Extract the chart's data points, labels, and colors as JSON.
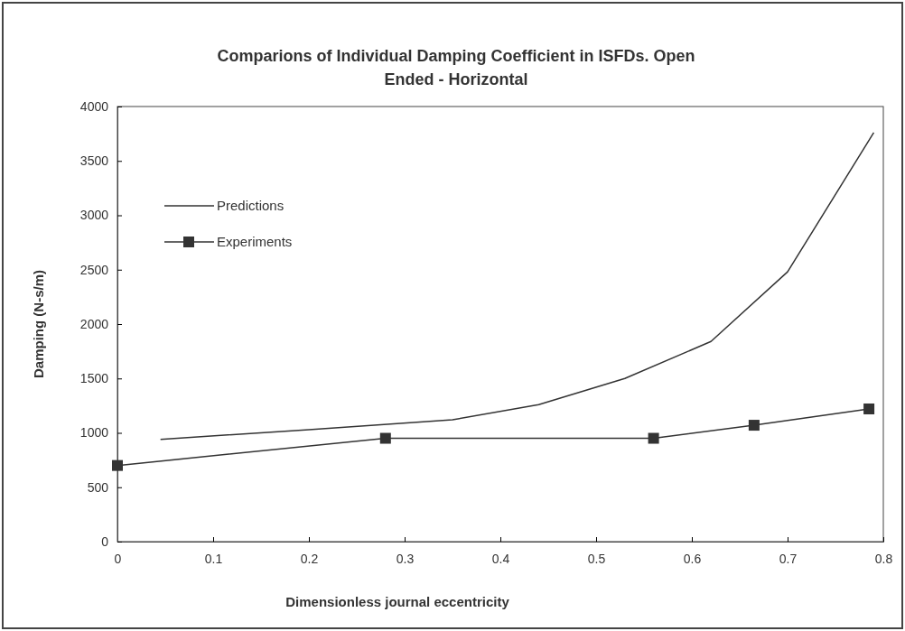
{
  "chart_data": {
    "type": "line",
    "title": "Comparions of Individual Damping Coefficient in ISFDs. Open Ended - Horizontal",
    "xlabel": "Dimensionless journal eccentricity",
    "ylabel": "Damping (N-s/m)",
    "series": [
      {
        "name": "Predictions",
        "color": "#333333",
        "marker": "none",
        "x": [
          0.045,
          0.2,
          0.35,
          0.44,
          0.53,
          0.62,
          0.7,
          0.79
        ],
        "values": [
          940,
          1030,
          1120,
          1260,
          1500,
          1840,
          2480,
          3760
        ]
      },
      {
        "name": "Experiments",
        "color": "#333333",
        "marker": "square",
        "x": [
          0,
          0.28,
          0.56,
          0.665,
          0.785
        ],
        "values": [
          700,
          950,
          950,
          1070,
          1220
        ]
      }
    ],
    "xlim": [
      0,
      0.8
    ],
    "xticks": [
      0,
      0.1,
      0.2,
      0.3,
      0.4,
      0.5,
      0.6,
      0.7,
      0.8
    ],
    "ylim": [
      0,
      4000
    ],
    "yticks": [
      0,
      500,
      1000,
      1500,
      2000,
      2500,
      3000,
      3500,
      4000
    ],
    "grid": false,
    "legend": "top left"
  }
}
